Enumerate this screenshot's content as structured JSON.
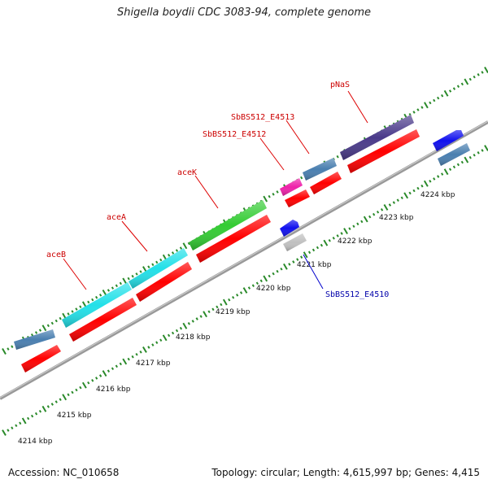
{
  "title": "Shigella boydii CDC 3083-94, complete genome",
  "footer": {
    "accession": "Accession: NC_010658",
    "topology": "Topology: circular; Length: 4,615,997 bp; Genes: 4,415"
  },
  "colors": {
    "backbone": "#888888",
    "tick": "#2a8a2a",
    "label_red": "#cc0000",
    "label_blue": "#0000aa"
  },
  "scale_ticks": [
    "4214 kbp",
    "4215 kbp",
    "4216 kbp",
    "4217 kbp",
    "4218 kbp",
    "4219 kbp",
    "4220 kbp",
    "4221 kbp",
    "4222 kbp",
    "4223 kbp",
    "4224 kbp"
  ],
  "gene_labels": [
    {
      "text": "aceB",
      "color": "red"
    },
    {
      "text": "aceA",
      "color": "red"
    },
    {
      "text": "aceK",
      "color": "red"
    },
    {
      "text": "SbBS512_E4512",
      "color": "red"
    },
    {
      "text": "SbBS512_E4513",
      "color": "red"
    },
    {
      "text": "pNaS",
      "color": "red"
    },
    {
      "text": "SbBS512_E4510",
      "color": "blue"
    }
  ],
  "features": [
    {
      "name": "steelblue-gene-1",
      "color": "#4a7fb0"
    },
    {
      "name": "red-cds-1",
      "color": "#ff0000"
    },
    {
      "name": "aceB-gene",
      "color": "#22e0e8"
    },
    {
      "name": "red-cds-aceB",
      "color": "#ff0000"
    },
    {
      "name": "aceA-gene",
      "color": "#22e0e8"
    },
    {
      "name": "red-cds-aceA",
      "color": "#ff0000"
    },
    {
      "name": "aceK-gene",
      "color": "#33cc33"
    },
    {
      "name": "red-cds-aceK",
      "color": "#ff0000"
    },
    {
      "name": "E4512-gene",
      "color": "#ee22aa"
    },
    {
      "name": "red-cds-E4512",
      "color": "#ff0000"
    },
    {
      "name": "E4513-gene",
      "color": "#4a7fb0"
    },
    {
      "name": "red-cds-E4513",
      "color": "#ff0000"
    },
    {
      "name": "pNaS-gene",
      "color": "#4a3a8a"
    },
    {
      "name": "red-cds-pNaS",
      "color": "#ff0000"
    },
    {
      "name": "blue-arrow-right",
      "color": "#1010ee"
    },
    {
      "name": "steelblue-gene-right",
      "color": "#4a7fb0"
    },
    {
      "name": "E4510-blue-arrow",
      "color": "#1010ee"
    },
    {
      "name": "E4510-gray-gene",
      "color": "#c0c0c0"
    }
  ]
}
